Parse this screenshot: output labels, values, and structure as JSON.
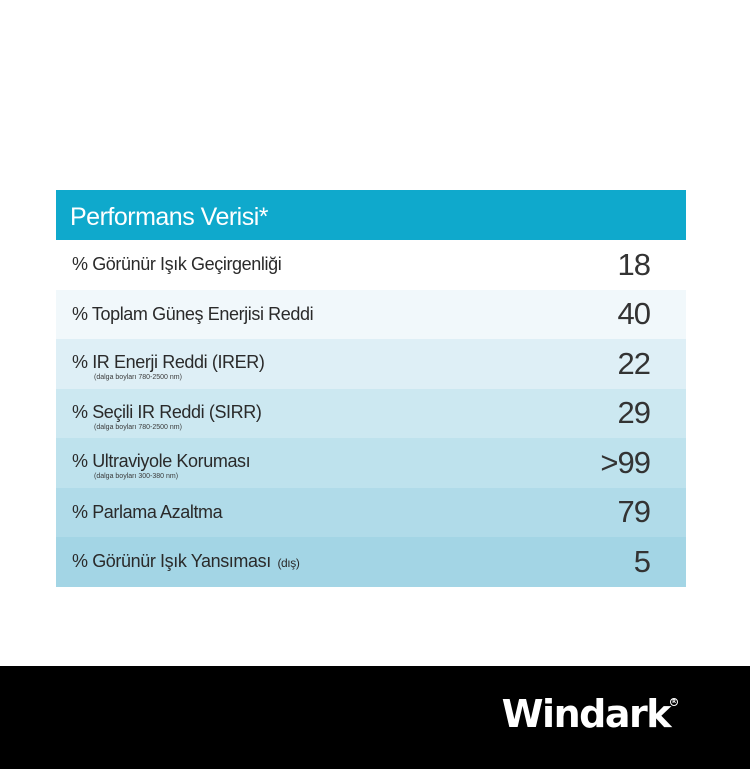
{
  "table": {
    "header": "Performans Verisi*",
    "rows": [
      {
        "label": "% Görünür Işık Geçirgenliği",
        "suffix": "",
        "note": "",
        "value": "18",
        "bg": "#ffffff"
      },
      {
        "label": "% Toplam Güneş Enerjisi Reddi",
        "suffix": "",
        "note": "",
        "value": "40",
        "bg": "#f1f8fb"
      },
      {
        "label": "% IR Enerji Reddi (IRER)",
        "suffix": "",
        "note": "(dalga boyları 780-2500 nm)",
        "value": "22",
        "bg": "#deeff6"
      },
      {
        "label": "% Seçili IR Reddi (SIRR)",
        "suffix": "",
        "note": "(dalga boyları 780-2500 nm)",
        "value": "29",
        "bg": "#cce8f1"
      },
      {
        "label": "% Ultraviyole Koruması",
        "suffix": "",
        "note": "(dalga boyları 300-380 nm)",
        "value": ">99",
        "bg": "#bee2ed"
      },
      {
        "label": "% Parlama Azaltma",
        "suffix": "",
        "note": "",
        "value": "79",
        "bg": "#b0dbe9"
      },
      {
        "label": "% Görünür Işık Yansıması",
        "suffix": "(dış)",
        "note": "",
        "value": "5",
        "bg": "#a3d5e5"
      }
    ]
  },
  "footer": {
    "logo": "Windark",
    "logo_mark": "R"
  },
  "colors": {
    "header_bg": "#0fa9cc",
    "footer_bg": "#000000"
  }
}
